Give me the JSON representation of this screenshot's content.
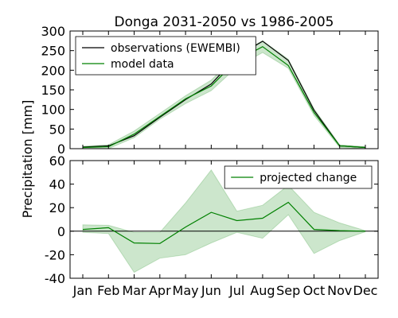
{
  "chart_data": [
    {
      "type": "line",
      "title": "Donga 2031-2050 vs 1986-2005",
      "ylabel": "Precipitation [mm]",
      "x": [
        "Jan",
        "Feb",
        "Mar",
        "Apr",
        "May",
        "Jun",
        "Jul",
        "Aug",
        "Sep",
        "Oct",
        "Nov",
        "Dec"
      ],
      "ylim": [
        0,
        300
      ],
      "yticks": [
        0,
        50,
        100,
        150,
        200,
        250,
        300
      ],
      "legend_position": "top-left",
      "series": [
        {
          "name": "observations (EWEMBI)",
          "color": "#000000",
          "values": [
            4,
            7,
            33,
            80,
            125,
            165,
            235,
            274,
            225,
            98,
            7,
            3
          ]
        },
        {
          "name": "model data",
          "color": "#008000",
          "values": [
            3,
            5,
            37,
            82,
            127,
            160,
            225,
            260,
            212,
            92,
            7,
            3
          ],
          "band_low": [
            0,
            0,
            28,
            75,
            115,
            148,
            208,
            245,
            205,
            85,
            3,
            0
          ],
          "band_high": [
            6,
            10,
            45,
            90,
            135,
            175,
            240,
            275,
            228,
            102,
            10,
            5
          ]
        }
      ]
    },
    {
      "type": "line",
      "x": [
        "Jan",
        "Feb",
        "Mar",
        "Apr",
        "May",
        "Jun",
        "Jul",
        "Aug",
        "Sep",
        "Oct",
        "Nov",
        "Dec"
      ],
      "xticks": [
        "Jan",
        "Feb",
        "Mar",
        "Apr",
        "May",
        "Jun",
        "Jul",
        "Aug",
        "Sep",
        "Oct",
        "Nov",
        "Dec"
      ],
      "ylim": [
        -40,
        60
      ],
      "yticks": [
        -40,
        -20,
        0,
        20,
        40,
        60
      ],
      "legend_position": "top-right",
      "series": [
        {
          "name": "projected change",
          "color": "#008000",
          "values": [
            1.5,
            3,
            -10,
            -10.5,
            3.5,
            16,
            9,
            11,
            24.5,
            1.5,
            0.5,
            0
          ],
          "band_low": [
            -1,
            -2,
            -35,
            -23,
            -20,
            -10,
            -1,
            -6,
            14,
            -19,
            -8,
            -0.5
          ],
          "band_high": [
            5.5,
            5,
            -1,
            -1,
            24,
            52,
            17,
            22,
            39,
            16,
            7,
            0.5
          ]
        }
      ]
    }
  ]
}
